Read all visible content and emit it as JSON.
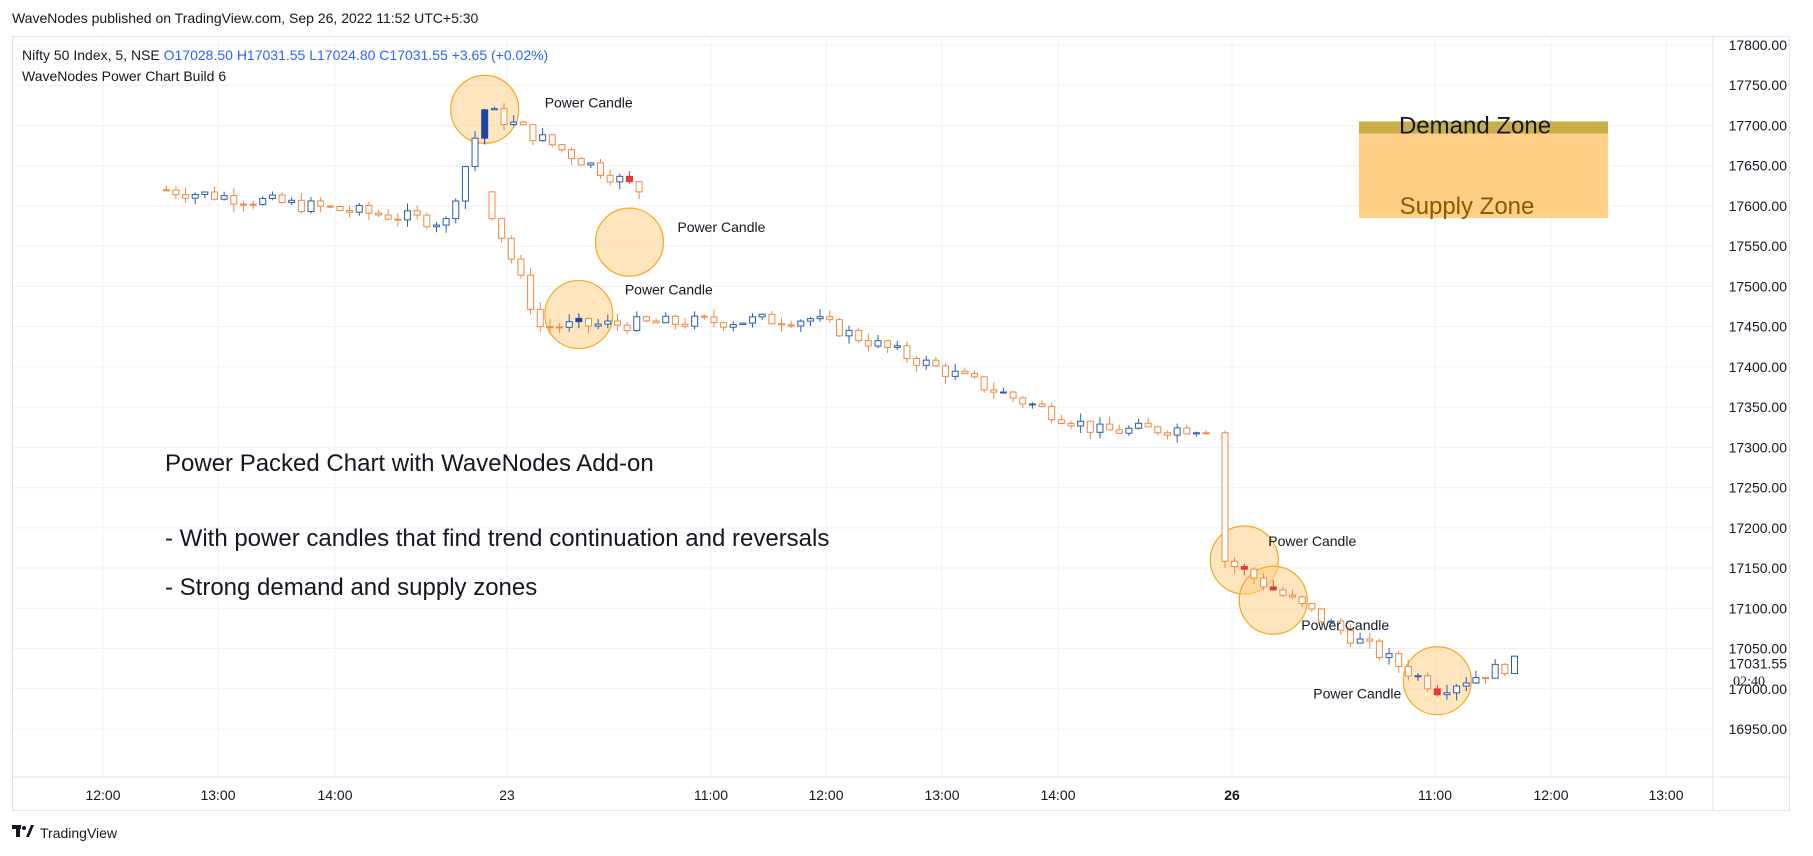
{
  "header": {
    "published": "WaveNodes published on TradingView.com, Sep 26, 2022 11:52 UTC+5:30"
  },
  "legend": {
    "symbol": "Nifty 50 Index, 5, NSE",
    "open": "O17028.50",
    "high": "H17031.55",
    "low": "L17024.80",
    "close": "C17031.55",
    "change": "+3.65 (+0.02%)",
    "indicator": "WaveNodes Power Chart Build 6"
  },
  "notes": {
    "title": "Power Packed Chart with WaveNodes Add-on",
    "line1": "- With power candles that find trend continuation and reversals",
    "line2": "- Strong demand and supply zones"
  },
  "zones": {
    "demand_label": "Demand Zone",
    "supply_label": "Supply Zone",
    "demand_color": "#c9ad49",
    "supply_color": "#ffcc80"
  },
  "footer": {
    "brand": "TradingView",
    "logo": "tradingview-logo-icon"
  },
  "colors": {
    "up": "#2a5db0",
    "down": "#f0883e",
    "power": "#e53935",
    "power_up": "#1a46a6",
    "grid": "#eef0f4",
    "circle_fill": "#ffd28a",
    "circle_stroke": "#f5a623"
  },
  "chart_data": {
    "type": "candlestick",
    "title": "",
    "ylim": [
      16900,
      17810
    ],
    "y_ticks": [
      "17800.00",
      "17750.00",
      "17700.00",
      "17650.00",
      "17600.00",
      "17550.00",
      "17500.00",
      "17450.00",
      "17400.00",
      "17350.00",
      "17300.00",
      "17250.00",
      "17200.00",
      "17150.00",
      "17100.00",
      "17050.00",
      "17000.00",
      "16950.00"
    ],
    "last_price": "17031.55",
    "countdown": "02:40",
    "x_ticks": [
      "12:00",
      "13:00",
      "14:00",
      "23",
      "11:00",
      "12:00",
      "13:00",
      "14:00",
      "26",
      "11:00",
      "12:00",
      "13:00"
    ],
    "power_candle_label": "Power Candle",
    "demand_zone": [
      17690,
      17705
    ],
    "supply_zone": [
      17585,
      17690
    ],
    "key_points": [
      {
        "time": "Sep 22 11:20",
        "price": 17620
      },
      {
        "time": "Sep 22 13:45",
        "price": 17580
      },
      {
        "time": "Sep 22 14:05",
        "price": 17720
      },
      {
        "time": "Sep 22 15:25",
        "price": 17620
      },
      {
        "time": "Sep 23 09:40",
        "price": 17450
      },
      {
        "time": "Sep 23 12:00",
        "price": 17460
      },
      {
        "time": "Sep 23 14:30",
        "price": 17320
      },
      {
        "time": "Sep 23 15:25",
        "price": 17325
      },
      {
        "time": "Sep 26 09:15",
        "price": 17160
      },
      {
        "time": "Sep 26 11:05",
        "price": 17000
      },
      {
        "time": "Sep 26 11:45",
        "price": 17031.55
      }
    ],
    "power_candles": [
      {
        "time": "Sep 22 14:05",
        "price": 17720,
        "dir": "up"
      },
      {
        "time": "Sep 22 15:20",
        "price": 17555,
        "dir": "down"
      },
      {
        "time": "Sep 23 10:00",
        "price": 17465,
        "dir": "down"
      },
      {
        "time": "Sep 26 09:25",
        "price": 17160,
        "dir": "down"
      },
      {
        "time": "Sep 26 09:40",
        "price": 17110,
        "dir": "down"
      },
      {
        "time": "Sep 26 11:05",
        "price": 17010,
        "dir": "down"
      }
    ]
  }
}
